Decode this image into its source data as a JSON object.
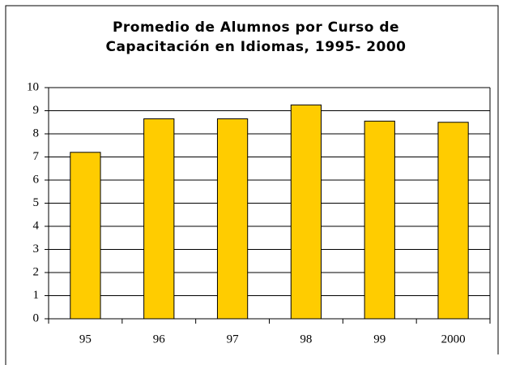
{
  "chart_data": {
    "type": "bar",
    "title": [
      "Promedio de Alumnos por Curso de",
      "Capacitación en Idiomas, 1995- 2000"
    ],
    "categories": [
      "95",
      "96",
      "97",
      "98",
      "99",
      "2000"
    ],
    "values": [
      7.2,
      8.65,
      8.65,
      9.25,
      8.55,
      8.5
    ],
    "color": "#ffcc00",
    "ylim": [
      0,
      10
    ],
    "yticks": [
      0,
      1,
      2,
      3,
      4,
      5,
      6,
      7,
      8,
      9,
      10
    ],
    "grid": true
  }
}
